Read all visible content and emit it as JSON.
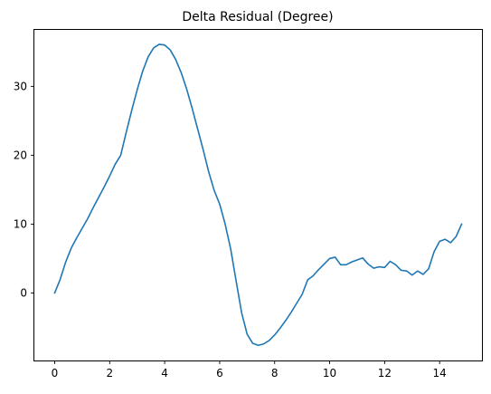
{
  "chart_data": {
    "type": "line",
    "title": "Delta Residual (Degree)",
    "xlabel": "",
    "ylabel": "",
    "xlim": [
      -0.74,
      15.54
    ],
    "ylim": [
      -9.8,
      38.2
    ],
    "x_ticks": [
      0,
      2,
      4,
      6,
      8,
      10,
      12,
      14
    ],
    "y_ticks": [
      0,
      10,
      20,
      30
    ],
    "grid": false,
    "legend": "none",
    "line_color": "#1f77b4",
    "series": [
      {
        "x": [
          0,
          0.2,
          0.4,
          0.6,
          0.8,
          1.0,
          1.2,
          1.4,
          1.6,
          1.8,
          2.0,
          2.2,
          2.4,
          2.6,
          2.8,
          3.0,
          3.2,
          3.4,
          3.6,
          3.8,
          4.0,
          4.2,
          4.4,
          4.6,
          4.8,
          5.0,
          5.2,
          5.4,
          5.6,
          5.8,
          6.0,
          6.2,
          6.4,
          6.6,
          6.8,
          7.0,
          7.2,
          7.4,
          7.6,
          7.8,
          8.0,
          8.2,
          8.4,
          8.6,
          8.8,
          9.0,
          9.2,
          9.4,
          9.6,
          9.8,
          10.0,
          10.2,
          10.4,
          10.6,
          10.8,
          11.0,
          11.2,
          11.4,
          11.6,
          11.8,
          12.0,
          12.2,
          12.4,
          12.6,
          12.8,
          13.0,
          13.2,
          13.4,
          13.6,
          13.8,
          14.0,
          14.2,
          14.4,
          14.6,
          14.8
        ],
        "values": [
          0.0,
          2.0,
          4.5,
          6.5,
          8.0,
          9.4,
          10.8,
          12.4,
          13.9,
          15.4,
          17.0,
          18.7,
          20.0,
          23.3,
          26.5,
          29.5,
          32.2,
          34.3,
          35.6,
          36.1,
          36.0,
          35.3,
          33.9,
          32.0,
          29.6,
          26.8,
          23.8,
          20.8,
          17.6,
          14.9,
          12.9,
          10.0,
          6.4,
          1.7,
          -2.9,
          -6.0,
          -7.3,
          -7.6,
          -7.4,
          -6.9,
          -6.1,
          -5.1,
          -4.0,
          -2.8,
          -1.5,
          -0.2,
          1.9,
          2.5,
          3.4,
          4.2,
          5.0,
          5.2,
          4.1,
          4.1,
          4.5,
          4.8,
          5.1,
          4.2,
          3.6,
          3.8,
          3.7,
          4.6,
          4.1,
          3.3,
          3.2,
          2.6,
          3.2,
          2.7,
          3.5,
          6.0,
          7.5,
          7.8,
          7.3,
          8.2,
          10.0
        ]
      }
    ]
  }
}
